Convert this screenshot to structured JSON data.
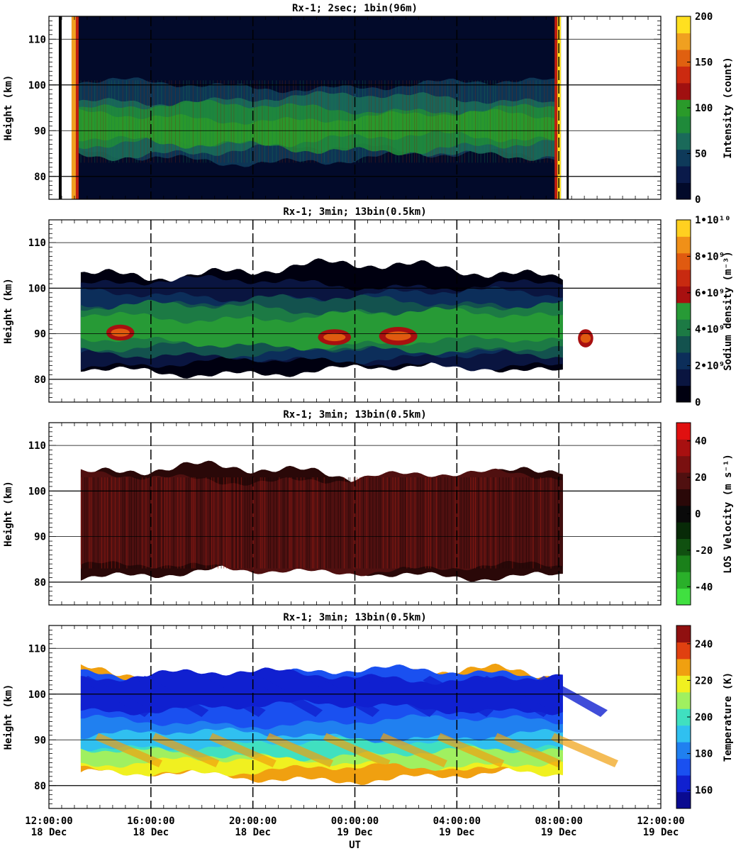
{
  "figure": {
    "xlabel": "UT",
    "xticks": [
      {
        "time": "12:00:00",
        "date": "18 Dec"
      },
      {
        "time": "16:00:00",
        "date": "18 Dec"
      },
      {
        "time": "20:00:00",
        "date": "18 Dec"
      },
      {
        "time": "00:00:00",
        "date": "19 Dec"
      },
      {
        "time": "04:00:00",
        "date": "19 Dec"
      },
      {
        "time": "08:00:00",
        "date": "19 Dec"
      },
      {
        "time": "12:00:00",
        "date": "19 Dec"
      }
    ]
  },
  "chart_data": [
    {
      "type": "heatmap",
      "title": "Rx-1;  2sec; 1bin(96m)",
      "ylabel": "Height (km)",
      "xlabel": "UT",
      "xlim": [
        "2023-12-18 12:00",
        "2023-12-19 12:00"
      ],
      "ylim": [
        75,
        115
      ],
      "yticks": [
        80,
        90,
        100,
        110
      ],
      "data_start": "2023-12-18 13:00",
      "data_end": "2023-12-19 08:00",
      "layer_km": [
        82,
        100
      ],
      "colorbar": {
        "label": "Intensity (count)",
        "range": [
          0,
          200
        ],
        "ticks": [
          "0",
          "50",
          "100",
          "150",
          "200"
        ],
        "colors": [
          "#020a2a",
          "#0a1a4a",
          "#0e3a5a",
          "#1a6a5a",
          "#1f8a3a",
          "#2a9a2a",
          "#a01010",
          "#cc2a10",
          "#e06010",
          "#f0a020",
          "#ffe020"
        ]
      }
    },
    {
      "type": "heatmap",
      "title": "Rx-1; 3min; 13bin(0.5km)",
      "ylabel": "Height (km)",
      "xlabel": "UT",
      "ylim": [
        75,
        115
      ],
      "yticks": [
        80,
        90,
        100,
        110
      ],
      "data_start": "2023-12-18 13:15",
      "data_end": "2023-12-19 08:15",
      "colorbar": {
        "label": "Sodium density (m⁻³)",
        "range": [
          0,
          10000000000.0
        ],
        "ticks": [
          "0",
          "2•10⁹",
          "4•10⁹",
          "6•10⁹",
          "8•10⁹",
          "1•10¹⁰"
        ],
        "colors": [
          "#000010",
          "#0a1540",
          "#0c2e5a",
          "#13524e",
          "#1c7a44",
          "#279a36",
          "#a81010",
          "#c82a10",
          "#e05a10",
          "#f09018",
          "#ffd020"
        ]
      }
    },
    {
      "type": "heatmap",
      "title": "Rx-1; 3min; 13bin(0.5km)",
      "ylabel": "Height (km)",
      "xlabel": "UT",
      "ylim": [
        75,
        115
      ],
      "yticks": [
        80,
        90,
        100,
        110
      ],
      "data_start": "2023-12-18 13:15",
      "data_end": "2023-12-19 08:15",
      "colorbar": {
        "label": "LOS Velocity (m s⁻¹)",
        "range": [
          -50,
          50
        ],
        "ticks": [
          "-40",
          "-20",
          "0",
          "20",
          "40"
        ],
        "colors": [
          "#40e040",
          "#2ab02a",
          "#1a801a",
          "#105010",
          "#082a08",
          "#0a0a0a",
          "#2a0808",
          "#501010",
          "#7a1010",
          "#a81010",
          "#e01010"
        ]
      }
    },
    {
      "type": "heatmap",
      "title": "Rx-1; 3min; 13bin(0.5km)",
      "ylabel": "Height (km)",
      "xlabel": "UT",
      "ylim": [
        75,
        115
      ],
      "yticks": [
        80,
        90,
        100,
        110
      ],
      "data_start": "2023-12-18 13:15",
      "data_end": "2023-12-19 08:15",
      "colorbar": {
        "label": "Temperature (K)",
        "range": [
          150,
          250
        ],
        "ticks": [
          "160",
          "180",
          "200",
          "220",
          "240"
        ],
        "colors": [
          "#0a0a90",
          "#1020d0",
          "#1a50f0",
          "#2080f0",
          "#30c0f0",
          "#40e0c0",
          "#a0f060",
          "#f0f020",
          "#f0a010",
          "#e04010",
          "#901010"
        ]
      }
    }
  ]
}
